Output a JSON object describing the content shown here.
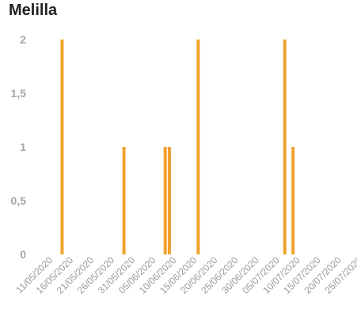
{
  "chart_data": {
    "type": "bar",
    "title": "Melilla",
    "xlabel": "",
    "ylabel": "",
    "ylim": [
      0,
      2
    ],
    "yticks": [
      "0",
      "0,5",
      "1",
      "1,5",
      "2"
    ],
    "ytick_values": [
      0,
      0.5,
      1,
      1.5,
      2
    ],
    "x_range": [
      "2020-05-11",
      "2020-07-25"
    ],
    "xtick_labels": [
      "11/05/2020",
      "16/05/2020",
      "21/05/2020",
      "26/05/2020",
      "31/05/2020",
      "05/06/2020",
      "10/06/2020",
      "15/06/2020",
      "20/06/2020",
      "25/06/2020",
      "30/06/2020",
      "05/07/2020",
      "10/07/2020",
      "15/07/2020",
      "20/07/2020",
      "25/07/2020"
    ],
    "grid": false,
    "series": [
      {
        "color": "#f0a22e",
        "x": [
          "2020-05-15",
          "2020-05-30",
          "2020-06-09",
          "2020-06-10",
          "2020-06-17",
          "2020-07-08",
          "2020-07-10"
        ],
        "values": [
          2,
          1,
          1,
          1,
          2,
          2,
          1
        ]
      }
    ]
  }
}
